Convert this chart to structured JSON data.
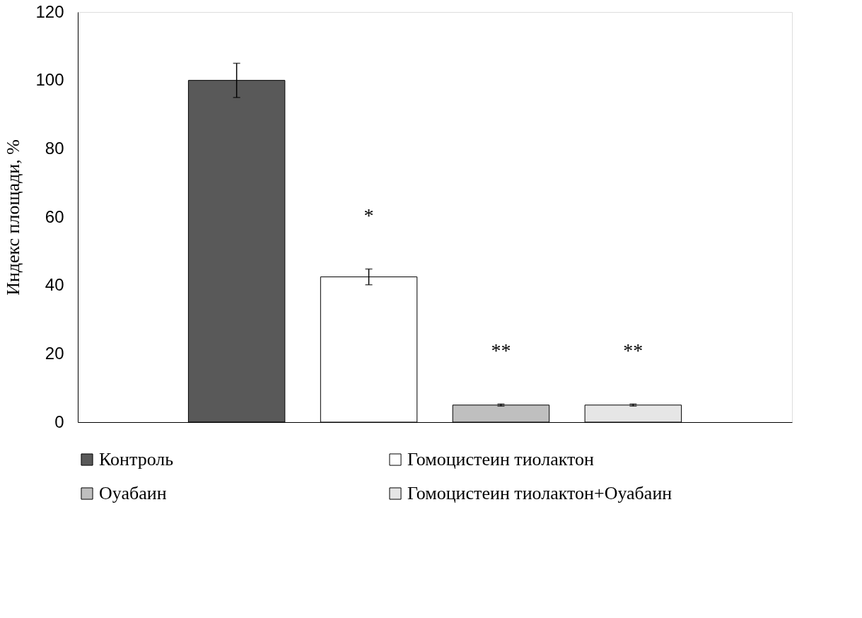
{
  "chart_data": {
    "type": "bar",
    "ylabel": "Индекс площади, %",
    "categories": [
      null
    ],
    "series": [
      {
        "name": "Контроль",
        "color": "#595959",
        "values": [
          100
        ],
        "errors": [
          5
        ]
      },
      {
        "name": "Гомоцистеин тиолактон",
        "color": "#ffffff",
        "values": [
          42.5
        ],
        "errors": [
          2.3
        ]
      },
      {
        "name": "Оуабаин",
        "color": "#bfbfbf",
        "values": [
          5
        ],
        "errors": [
          0.3
        ]
      },
      {
        "name": "Гомоцистеин тиолактон+Оуабаин",
        "color": "#e6e6e6",
        "values": [
          5
        ],
        "errors": [
          0.3
        ]
      }
    ],
    "annotations": [
      "*",
      "**",
      "**"
    ],
    "ylim": [
      0,
      120
    ],
    "yticks": [
      0,
      20,
      40,
      60,
      80,
      100,
      120
    ],
    "grid": false,
    "legend": "bottom"
  }
}
